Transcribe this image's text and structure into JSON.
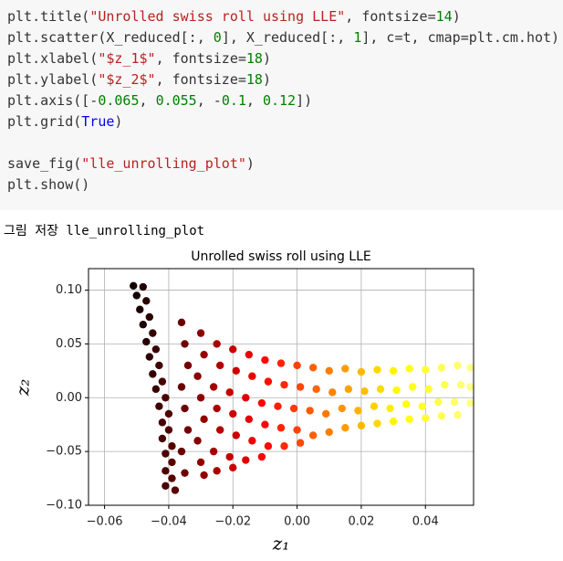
{
  "code_cell": {
    "lines": [
      "plt.title(\"Unrolled swiss roll using LLE\", fontsize=14)",
      "plt.scatter(X_reduced[:, 0], X_reduced[:, 1], c=t, cmap=plt.cm.hot)",
      "plt.xlabel(\"$z_1$\", fontsize=18)",
      "plt.ylabel(\"$z_2$\", fontsize=18)",
      "plt.axis([-0.065, 0.055, -0.1, 0.12])",
      "plt.grid(True)",
      "save_fig(\"lle_unrolling_plot\")",
      "plt.show()"
    ]
  },
  "output": {
    "text": "그림 저장 lle_unrolling_plot"
  },
  "chart_data": {
    "type": "scatter",
    "title": "Unrolled swiss roll using LLE",
    "xlabel": "z₁",
    "ylabel": "z₂",
    "colormap": "hot",
    "grid": true,
    "xlim": [
      -0.065,
      0.055
    ],
    "ylim": [
      -0.1,
      0.12
    ],
    "xticks": [
      {
        "value": -0.06,
        "label": "−0.06"
      },
      {
        "value": -0.04,
        "label": "−0.04"
      },
      {
        "value": -0.02,
        "label": "−0.02"
      },
      {
        "value": 0,
        "label": "0.00"
      },
      {
        "value": 0.02,
        "label": "0.02"
      },
      {
        "value": 0.04,
        "label": "0.04"
      }
    ],
    "yticks": [
      {
        "value": -0.1,
        "label": "−0.10"
      },
      {
        "value": -0.05,
        "label": "−0.05"
      },
      {
        "value": 0,
        "label": "0.00"
      },
      {
        "value": 0.05,
        "label": "0.05"
      },
      {
        "value": 0.1,
        "label": "0.10"
      }
    ],
    "x": [
      -0.051,
      -0.048,
      -0.05,
      -0.047,
      -0.049,
      -0.046,
      -0.048,
      -0.045,
      -0.047,
      -0.044,
      -0.046,
      -0.043,
      -0.045,
      -0.042,
      -0.044,
      -0.041,
      -0.043,
      -0.04,
      -0.042,
      -0.04,
      -0.042,
      -0.039,
      -0.041,
      -0.039,
      -0.041,
      -0.039,
      -0.041,
      -0.038,
      -0.036,
      -0.035,
      -0.034,
      -0.036,
      -0.035,
      -0.034,
      -0.036,
      -0.035,
      -0.03,
      -0.029,
      -0.031,
      -0.03,
      -0.029,
      -0.031,
      -0.03,
      -0.029,
      -0.025,
      -0.024,
      -0.026,
      -0.025,
      -0.024,
      -0.026,
      -0.025,
      -0.02,
      -0.019,
      -0.021,
      -0.02,
      -0.019,
      -0.021,
      -0.02,
      -0.015,
      -0.014,
      -0.016,
      -0.015,
      -0.014,
      -0.016,
      -0.01,
      -0.009,
      -0.011,
      -0.01,
      -0.009,
      -0.011,
      -0.005,
      -0.004,
      -0.006,
      -0.005,
      -0.004,
      0.0,
      0.001,
      -0.001,
      0.0,
      0.001,
      0.005,
      0.006,
      0.004,
      0.005,
      0.01,
      0.011,
      0.009,
      0.01,
      0.015,
      0.016,
      0.014,
      0.015,
      0.02,
      0.021,
      0.019,
      0.02,
      0.025,
      0.026,
      0.024,
      0.025,
      0.03,
      0.031,
      0.029,
      0.03,
      0.035,
      0.036,
      0.034,
      0.035,
      0.04,
      0.041,
      0.039,
      0.04,
      0.045,
      0.046,
      0.044,
      0.045,
      0.05,
      0.051,
      0.049,
      0.05,
      0.054,
      0.054,
      0.054
    ],
    "values": [
      0.104,
      0.103,
      0.095,
      0.09,
      0.082,
      0.075,
      0.068,
      0.06,
      0.052,
      0.045,
      0.038,
      0.03,
      0.022,
      0.015,
      0.008,
      0.0,
      -0.008,
      -0.015,
      -0.023,
      -0.03,
      -0.038,
      -0.045,
      -0.052,
      -0.06,
      -0.068,
      -0.075,
      -0.082,
      -0.086,
      0.07,
      0.05,
      0.03,
      0.01,
      -0.01,
      -0.03,
      -0.05,
      -0.07,
      0.06,
      0.04,
      0.02,
      0.0,
      -0.02,
      -0.04,
      -0.06,
      -0.072,
      0.05,
      0.03,
      0.01,
      -0.01,
      -0.03,
      -0.05,
      -0.068,
      0.045,
      0.025,
      0.005,
      -0.015,
      -0.035,
      -0.055,
      -0.065,
      0.04,
      0.02,
      0.0,
      -0.02,
      -0.04,
      -0.058,
      0.035,
      0.015,
      -0.005,
      -0.025,
      -0.045,
      -0.055,
      0.032,
      0.012,
      -0.008,
      -0.028,
      -0.045,
      0.03,
      0.01,
      -0.01,
      -0.03,
      -0.042,
      0.028,
      0.008,
      -0.012,
      -0.035,
      0.025,
      0.005,
      -0.015,
      -0.032,
      0.027,
      0.008,
      -0.01,
      -0.028,
      0.024,
      0.006,
      -0.012,
      -0.026,
      0.026,
      0.008,
      -0.008,
      -0.024,
      0.025,
      0.007,
      -0.01,
      -0.022,
      0.027,
      0.01,
      -0.006,
      -0.02,
      0.026,
      0.008,
      -0.008,
      -0.019,
      0.028,
      0.012,
      -0.004,
      -0.017,
      0.03,
      0.012,
      -0.004,
      -0.016,
      0.028,
      0.01,
      -0.005
    ]
  }
}
